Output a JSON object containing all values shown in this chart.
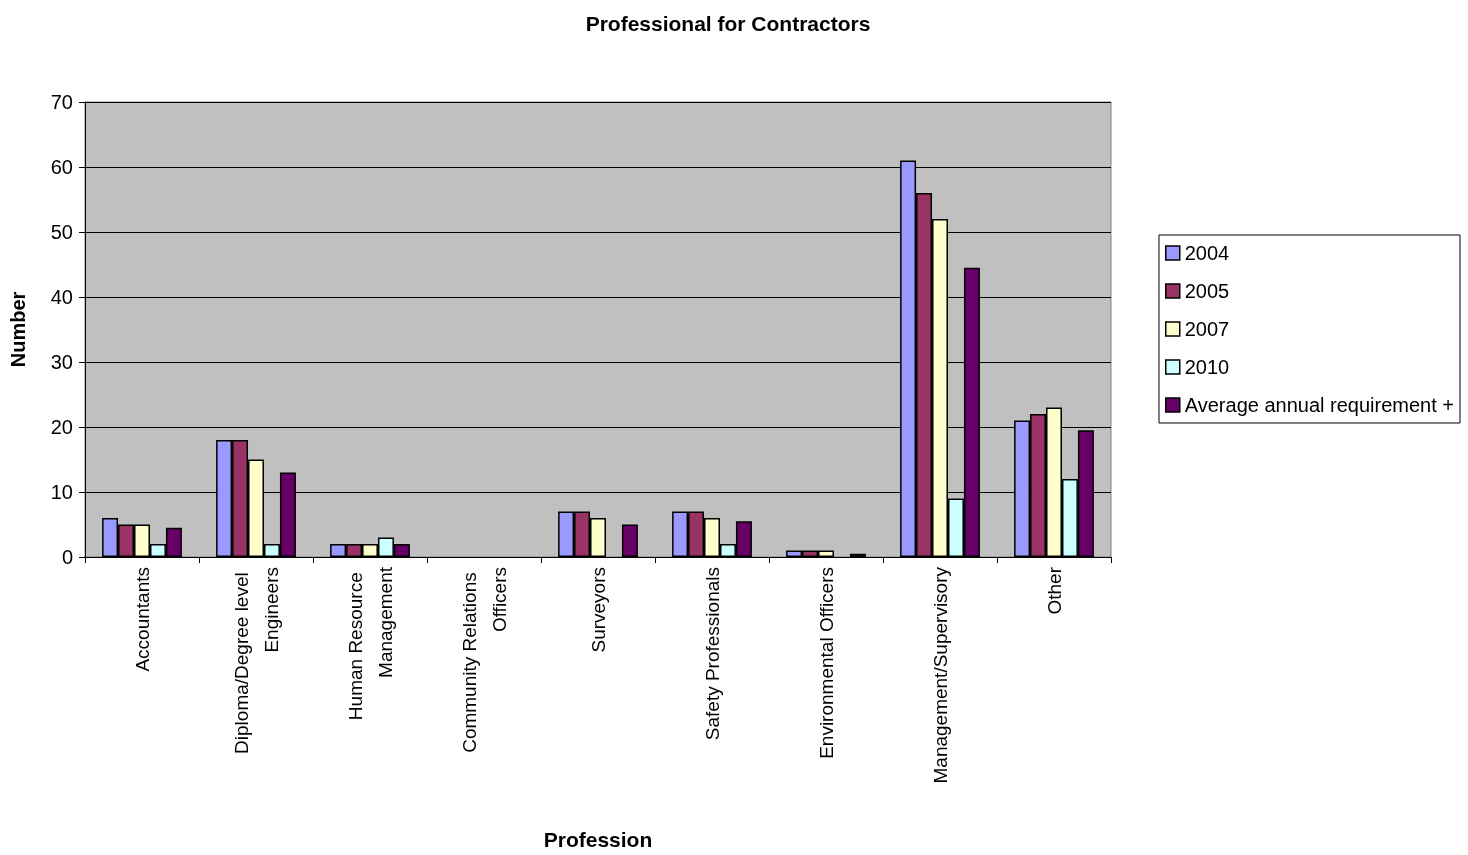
{
  "chart_data": {
    "type": "bar",
    "title": "Professional for Contractors",
    "xlabel": "Profession",
    "ylabel": "Number",
    "categories": [
      "Accountants",
      "Diploma/Degree level Engineers",
      "Human Resource Management",
      "Community Relations Officers",
      "Surveyors",
      "Safety Professionals",
      "Environmental Officers",
      "Management/Supervisory",
      "Other"
    ],
    "series": [
      {
        "name": "2004",
        "color": "#9999ff",
        "values": [
          6,
          18,
          2,
          null,
          7,
          7,
          1,
          61,
          21
        ]
      },
      {
        "name": "2005",
        "color": "#993366",
        "values": [
          5,
          18,
          2,
          null,
          7,
          7,
          1,
          56,
          22
        ]
      },
      {
        "name": "2007",
        "color": "#ffffcc",
        "values": [
          5,
          15,
          2,
          null,
          6,
          6,
          1,
          52,
          23
        ]
      },
      {
        "name": "2010",
        "color": "#ccffff",
        "values": [
          2,
          2,
          3,
          null,
          null,
          2,
          null,
          9,
          12
        ]
      },
      {
        "name": "Average annual requirement +",
        "color": "#660066",
        "values": [
          4.5,
          13,
          2,
          null,
          5,
          5.5,
          0.5,
          44.5,
          19.5
        ]
      }
    ],
    "ylim": [
      0,
      70
    ],
    "yticks": [
      0,
      10,
      20,
      30,
      40,
      50,
      60,
      70
    ],
    "grid": "y",
    "legend": "right"
  }
}
